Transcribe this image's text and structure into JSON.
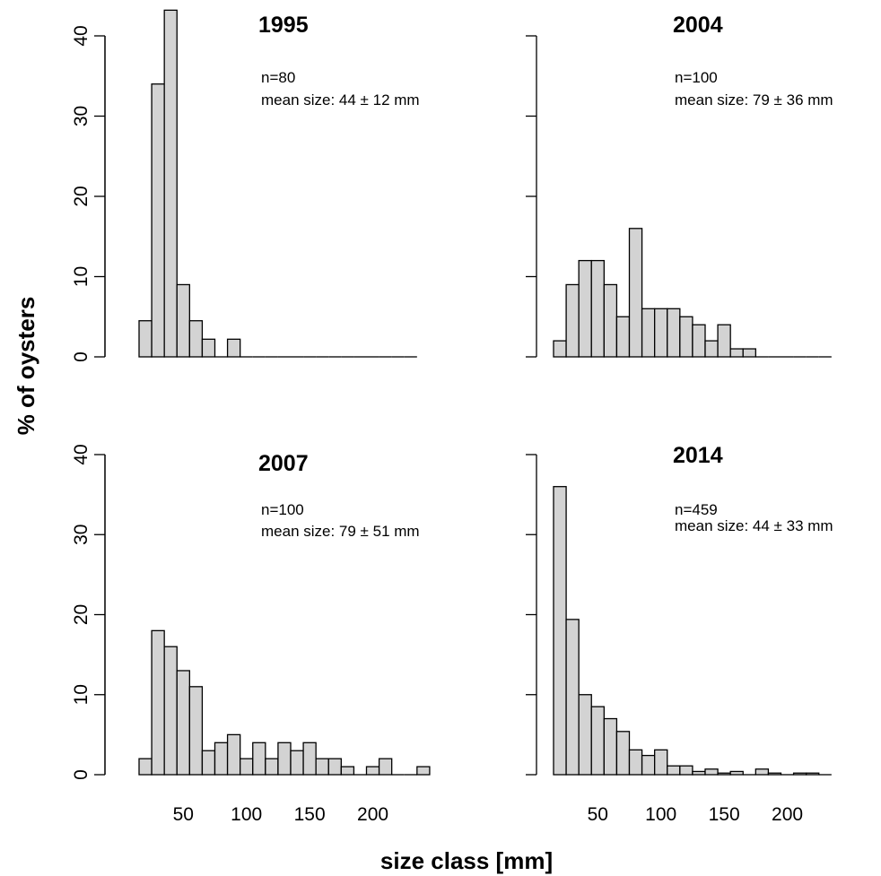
{
  "chart_data": {
    "type": "bar",
    "xlabel": "size class [mm]",
    "ylabel": "% of oysters",
    "bar_color": "#d3d3d3",
    "bin_width": 10,
    "xlim": [
      10,
      250
    ],
    "ylim": [
      0,
      43
    ],
    "y_ticks": [
      0,
      10,
      20,
      30,
      40
    ],
    "x_ticks": [
      50,
      100,
      150,
      200
    ],
    "panels": [
      {
        "title": "1995",
        "annotation": [
          "n=80",
          "mean size: 44 ± 12 mm"
        ],
        "show_x_ticks": false,
        "bins": [
          20,
          30,
          40,
          50,
          60,
          70,
          80,
          90,
          100,
          110,
          120,
          130,
          140,
          150,
          160,
          170,
          180,
          190,
          200,
          210,
          220,
          230
        ],
        "values": [
          4.5,
          34,
          43.2,
          9,
          4.5,
          2.2,
          0,
          2.2,
          0,
          0,
          0,
          0,
          0,
          0,
          0,
          0,
          0,
          0,
          0,
          0,
          0,
          0
        ]
      },
      {
        "title": "2004",
        "annotation": [
          "n=100",
          "mean size: 79 ± 36 mm"
        ],
        "show_x_ticks": false,
        "bins": [
          20,
          30,
          40,
          50,
          60,
          70,
          80,
          90,
          100,
          110,
          120,
          130,
          140,
          150,
          160,
          170,
          180,
          190,
          200,
          210,
          220,
          230
        ],
        "values": [
          2,
          9,
          12,
          12,
          9,
          5,
          16,
          6,
          6,
          6,
          5,
          4,
          2,
          4,
          1,
          1,
          0,
          0,
          0,
          0,
          0,
          0
        ]
      },
      {
        "title": "2007",
        "annotation": [
          "n=100",
          "mean size: 79 ± 51 mm"
        ],
        "show_x_ticks": true,
        "bins": [
          20,
          30,
          40,
          50,
          60,
          70,
          80,
          90,
          100,
          110,
          120,
          130,
          140,
          150,
          160,
          170,
          180,
          190,
          200,
          210,
          220,
          230,
          240
        ],
        "values": [
          2,
          18,
          16,
          13,
          11,
          3,
          4,
          5,
          2,
          4,
          2,
          4,
          3,
          4,
          2,
          2,
          1,
          0,
          1,
          2,
          0,
          0,
          1
        ]
      },
      {
        "title": "2014",
        "annotation": [
          "n=459",
          "mean size: 44 ± 33 mm"
        ],
        "show_x_ticks": true,
        "bins": [
          20,
          30,
          40,
          50,
          60,
          70,
          80,
          90,
          100,
          110,
          120,
          130,
          140,
          150,
          160,
          170,
          180,
          190,
          200,
          210,
          220,
          230
        ],
        "values": [
          36,
          19.4,
          10,
          8.5,
          7,
          5.4,
          3.1,
          2.4,
          3.1,
          1.1,
          1.1,
          0.4,
          0.7,
          0.2,
          0.4,
          0,
          0.7,
          0.2,
          0,
          0.2,
          0.2,
          0
        ]
      }
    ]
  }
}
